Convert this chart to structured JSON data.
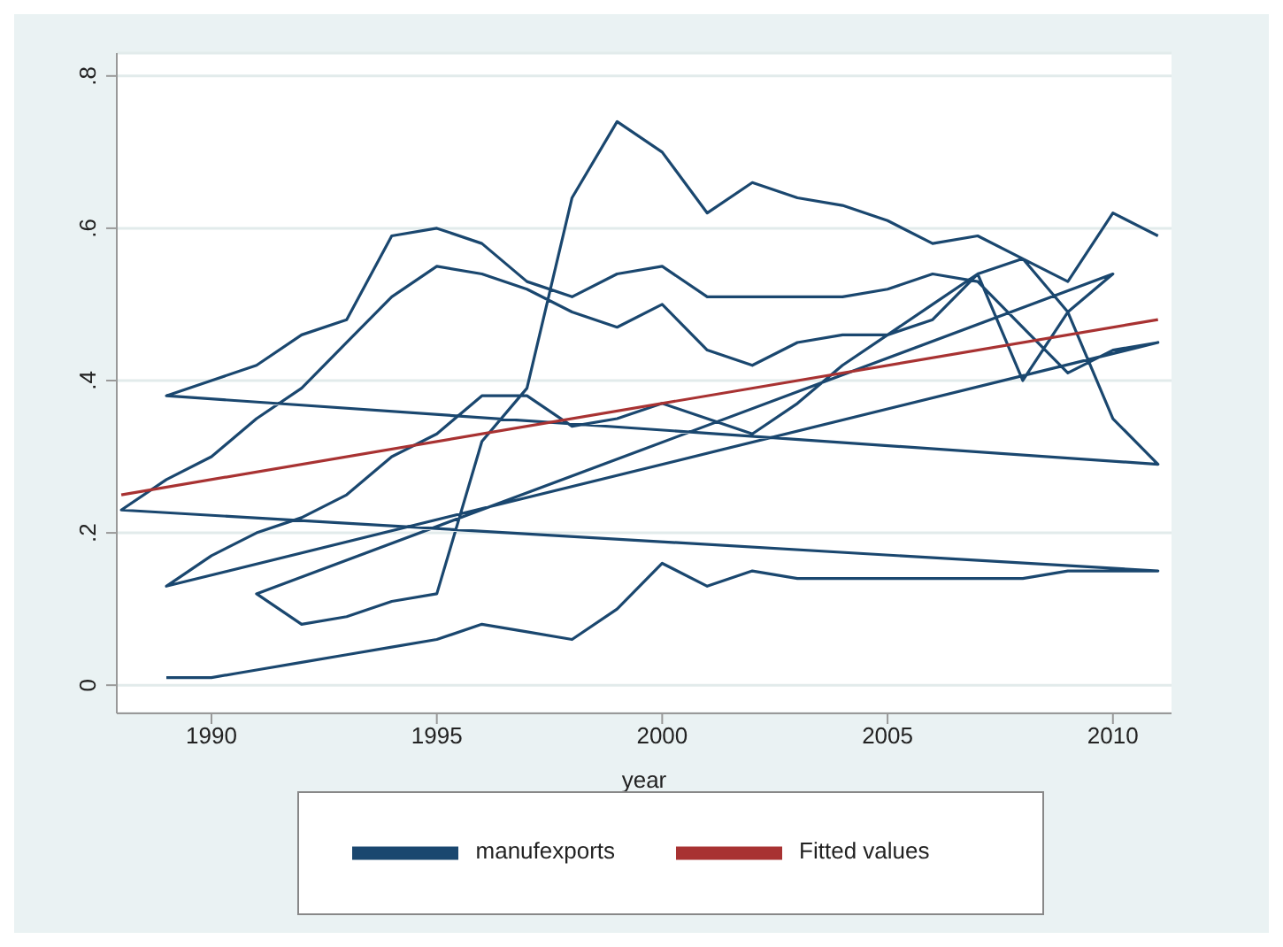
{
  "chart_data": {
    "type": "line",
    "xlabel": "year",
    "xlim": [
      1987.9,
      2011.3
    ],
    "xticks": [
      1990,
      1995,
      2000,
      2005,
      2010
    ],
    "ylim": [
      -0.037,
      0.83
    ],
    "yticks": [
      0,
      {
        "value": 0.2,
        "label": ".2"
      },
      {
        "value": 0.4,
        "label": ".4"
      },
      {
        "value": 0.6,
        "label": ".6"
      },
      {
        "value": 0.8,
        "label": ".8"
      }
    ],
    "grid": "y",
    "legend": "bottom",
    "marker": "none",
    "line_style": "solid",
    "series": [
      {
        "name": "manufexports",
        "color": "#1a476f",
        "x": [
          1989,
          1990,
          1991,
          1992,
          1993,
          1994,
          1995,
          1996,
          1997,
          1998,
          1999,
          2000,
          2001,
          2002,
          2003,
          2004,
          2005,
          2006,
          2007,
          2008,
          2009,
          2010,
          2011,
          1988,
          1989,
          1990,
          1991,
          1992,
          1993,
          1994,
          1995,
          1996,
          1997,
          1998,
          1999,
          2000,
          2001,
          2002,
          2003,
          2004,
          2005,
          2006,
          2007,
          2008,
          2009,
          2010,
          2011,
          1989,
          1990,
          1991,
          1992,
          1993,
          1994,
          1995,
          1996,
          1997,
          1998,
          1999,
          2000,
          2001,
          2002,
          2003,
          2004,
          2005,
          2006,
          2007,
          2008,
          2009,
          2010,
          2011,
          1989,
          1990,
          1991,
          1992,
          1993,
          1994,
          1995,
          1996,
          1997,
          1998,
          1999,
          2000,
          2001,
          2002,
          2003,
          2004,
          2005,
          2006,
          2007,
          2008,
          2009,
          2010,
          1991,
          1992,
          1993,
          1994,
          1995,
          1996,
          1997,
          1998,
          1999,
          2000,
          2001,
          2002,
          2003,
          2004,
          2005,
          2006,
          2007,
          2008,
          2009,
          2010,
          2011
        ],
        "values": [
          0.01,
          0.01,
          0.02,
          0.03,
          0.04,
          0.05,
          0.06,
          0.08,
          0.07,
          0.06,
          0.1,
          0.16,
          0.13,
          0.15,
          0.14,
          0.14,
          0.14,
          0.14,
          0.14,
          0.14,
          0.15,
          0.15,
          0.15,
          0.23,
          0.27,
          0.3,
          0.35,
          0.39,
          0.45,
          0.51,
          0.55,
          0.54,
          0.52,
          0.49,
          0.47,
          0.5,
          0.44,
          0.42,
          0.45,
          0.46,
          0.46,
          0.48,
          0.54,
          0.56,
          0.49,
          0.35,
          0.29,
          0.38,
          0.4,
          0.42,
          0.46,
          0.48,
          0.59,
          0.6,
          0.58,
          0.53,
          0.51,
          0.54,
          0.55,
          0.51,
          0.51,
          0.51,
          0.51,
          0.52,
          0.54,
          0.53,
          0.47,
          0.41,
          0.44,
          0.45,
          0.13,
          0.17,
          0.2,
          0.22,
          0.25,
          0.3,
          0.33,
          0.38,
          0.38,
          0.34,
          0.35,
          0.37,
          0.35,
          0.33,
          0.37,
          0.42,
          0.46,
          0.5,
          0.54,
          0.4,
          0.49,
          0.54,
          0.12,
          0.08,
          0.09,
          0.11,
          0.12,
          0.32,
          0.39,
          0.64,
          0.74,
          0.7,
          0.62,
          0.66,
          0.64,
          0.63,
          0.61,
          0.58,
          0.59,
          0.56,
          0.53,
          0.62,
          0.59
        ]
      },
      {
        "name": "Fitted values",
        "color": "#a83232",
        "x": [
          1988,
          2011
        ],
        "values": [
          0.25,
          0.48
        ]
      }
    ]
  }
}
